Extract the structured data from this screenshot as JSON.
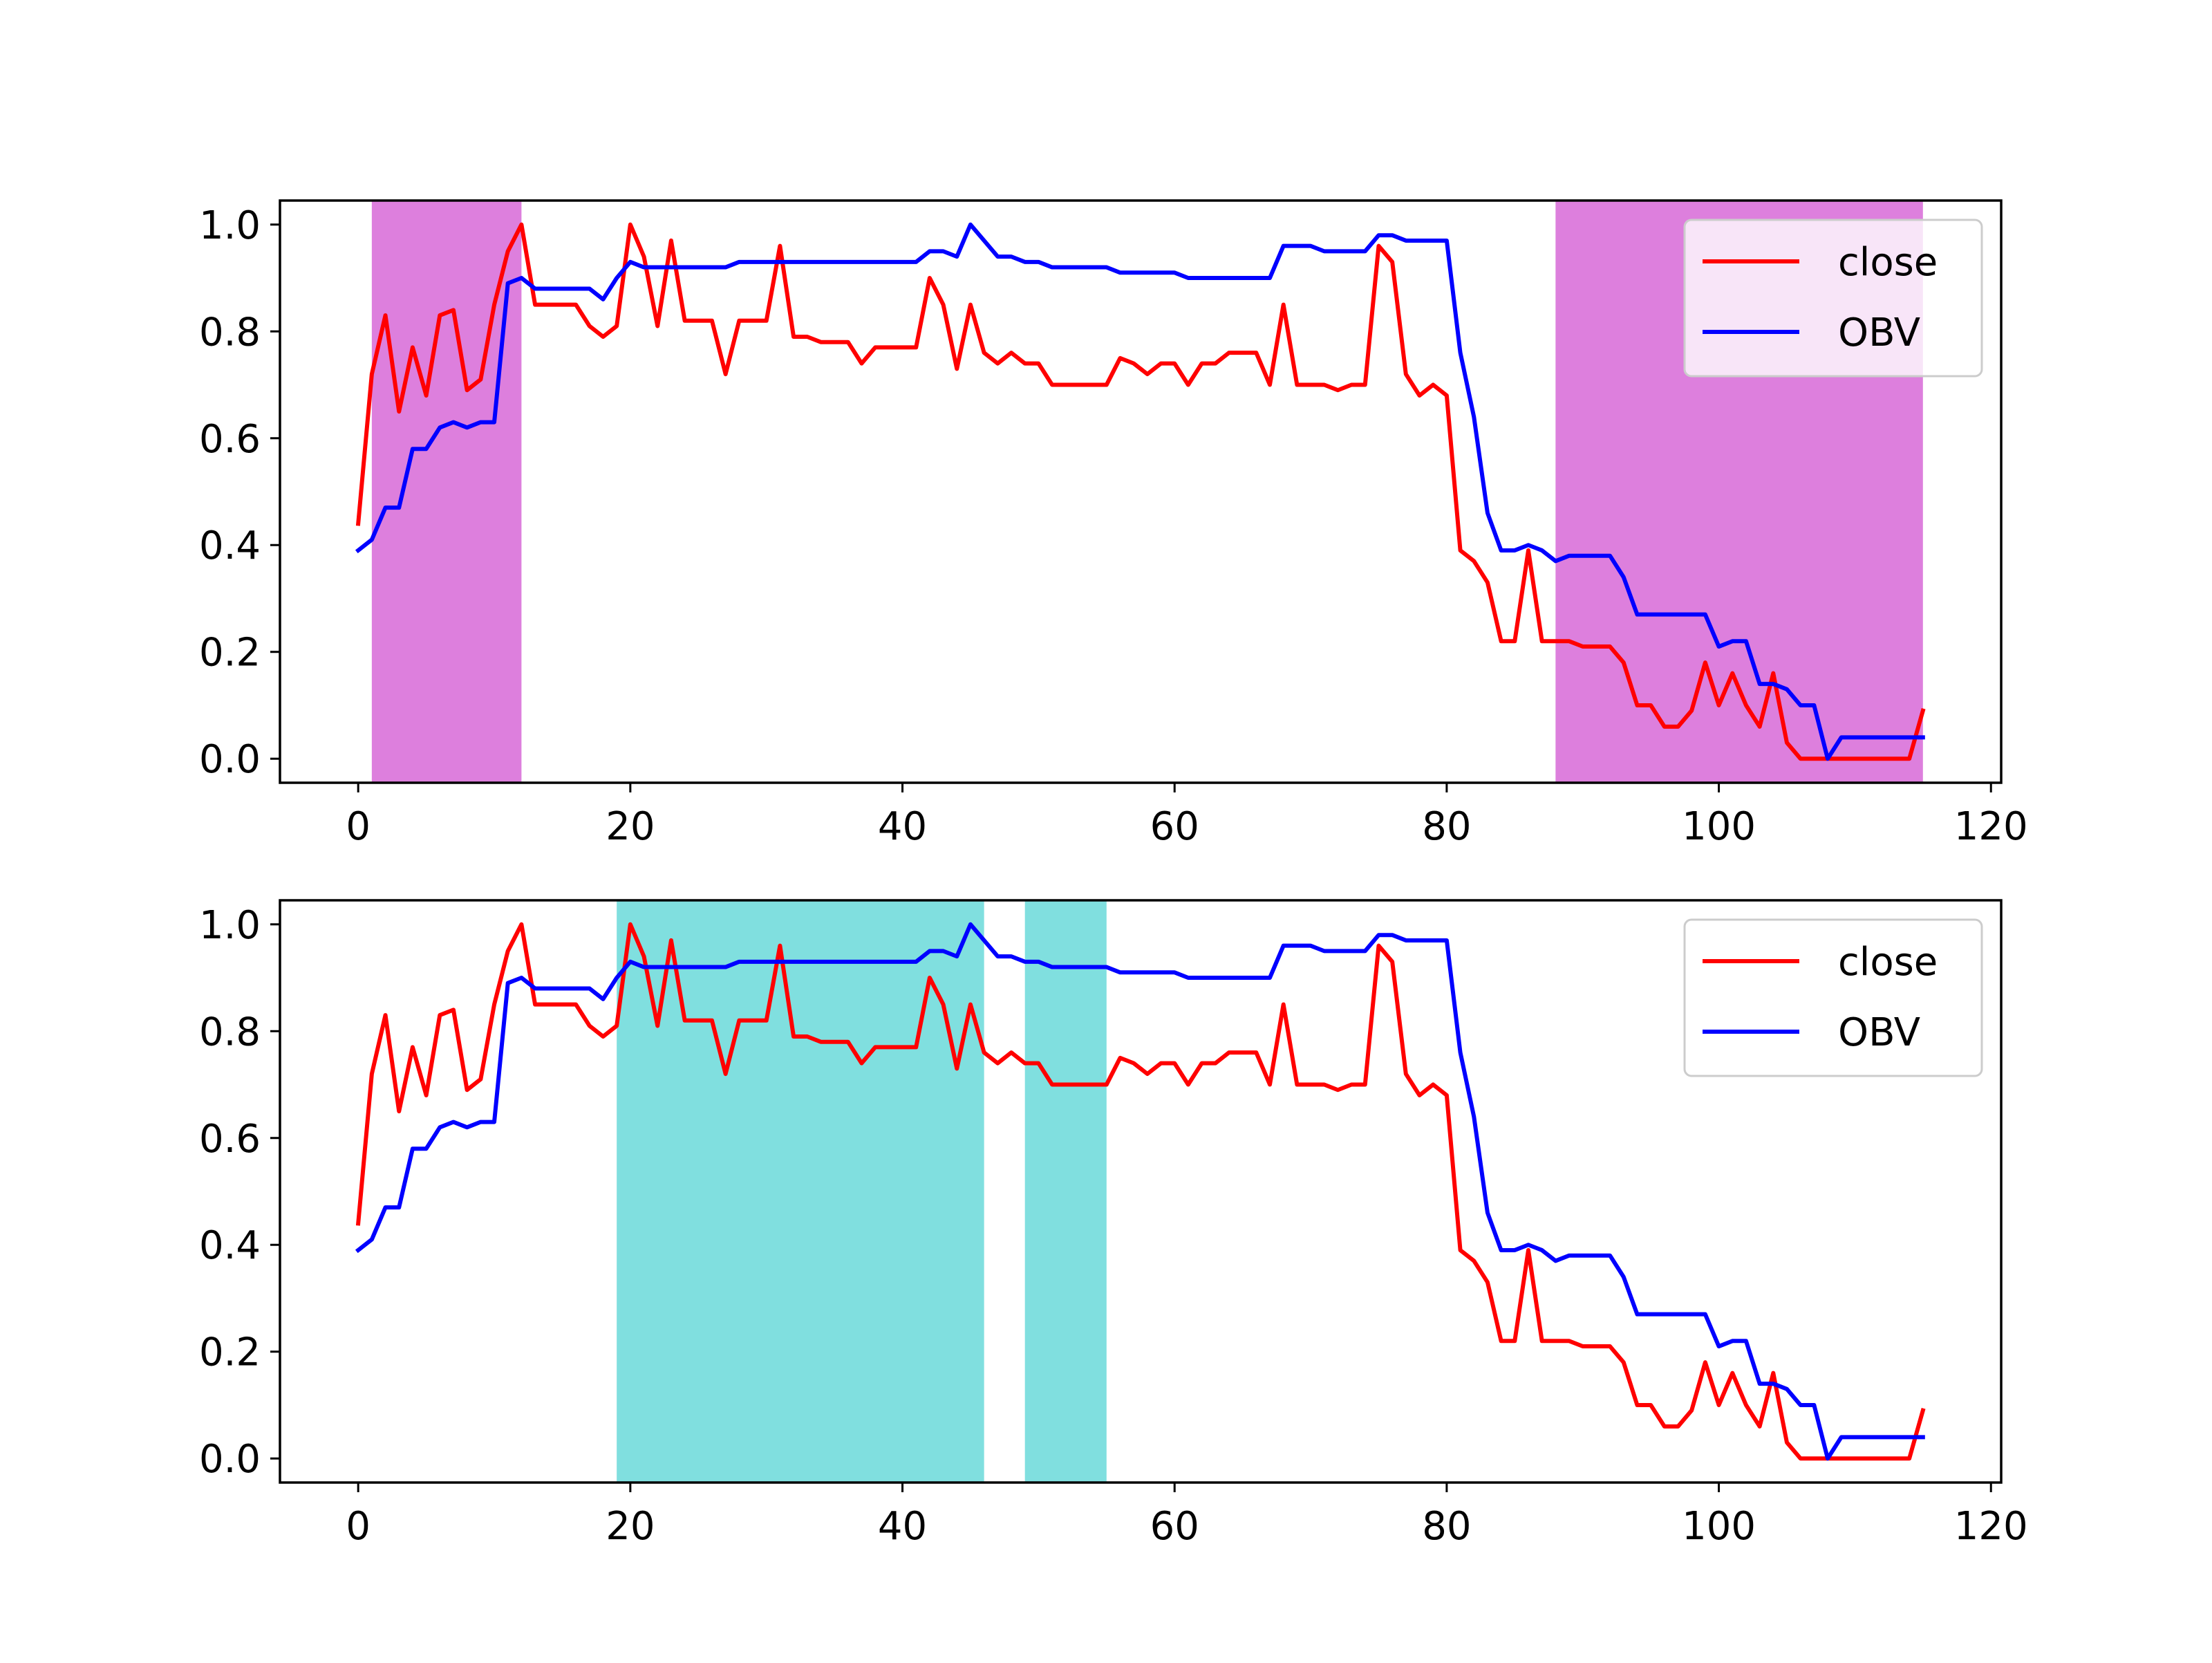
{
  "chart_data": [
    {
      "type": "line",
      "xlim": [
        -5.75,
        120.75
      ],
      "ylim": [
        -0.045,
        1.045
      ],
      "xticks": [
        0,
        20,
        40,
        60,
        80,
        100,
        120
      ],
      "yticks": [
        0.0,
        0.2,
        0.4,
        0.6,
        0.8,
        1.0
      ],
      "xtick_labels": [
        "0",
        "20",
        "40",
        "60",
        "80",
        "100",
        "120"
      ],
      "ytick_labels": [
        "0.0",
        "0.2",
        "0.4",
        "0.6",
        "0.8",
        "1.0"
      ],
      "legend_position": "upper-right",
      "legend": [
        "close",
        "OBV"
      ],
      "shaded_spans": [
        {
          "x0": 1,
          "x1": 12,
          "color": "#dd7fdd"
        },
        {
          "x0": 88,
          "x1": 115,
          "color": "#dd7fdd"
        }
      ],
      "series": [
        {
          "name": "close",
          "color": "#ff0000",
          "values": [
            0.44,
            0.72,
            0.83,
            0.65,
            0.77,
            0.68,
            0.83,
            0.84,
            0.69,
            0.71,
            0.85,
            0.95,
            1.0,
            0.85,
            0.85,
            0.85,
            0.85,
            0.81,
            0.79,
            0.81,
            1.0,
            0.94,
            0.81,
            0.97,
            0.82,
            0.82,
            0.82,
            0.72,
            0.82,
            0.82,
            0.82,
            0.96,
            0.79,
            0.79,
            0.78,
            0.78,
            0.78,
            0.74,
            0.77,
            0.77,
            0.77,
            0.77,
            0.9,
            0.85,
            0.73,
            0.85,
            0.76,
            0.74,
            0.76,
            0.74,
            0.74,
            0.7,
            0.7,
            0.7,
            0.7,
            0.7,
            0.75,
            0.74,
            0.72,
            0.74,
            0.74,
            0.7,
            0.74,
            0.74,
            0.76,
            0.76,
            0.76,
            0.7,
            0.85,
            0.7,
            0.7,
            0.7,
            0.69,
            0.7,
            0.7,
            0.96,
            0.93,
            0.72,
            0.68,
            0.7,
            0.68,
            0.39,
            0.37,
            0.33,
            0.22,
            0.22,
            0.39,
            0.22,
            0.22,
            0.22,
            0.21,
            0.21,
            0.21,
            0.18,
            0.1,
            0.1,
            0.06,
            0.06,
            0.09,
            0.18,
            0.1,
            0.16,
            0.1,
            0.06,
            0.16,
            0.03,
            0.0,
            0.0,
            0.0,
            0.0,
            0.0,
            0.0,
            0.0,
            0.0,
            0.0,
            0.09
          ]
        },
        {
          "name": "OBV",
          "color": "#0000ff",
          "values": [
            0.39,
            0.41,
            0.47,
            0.47,
            0.58,
            0.58,
            0.62,
            0.63,
            0.62,
            0.63,
            0.63,
            0.89,
            0.9,
            0.88,
            0.88,
            0.88,
            0.88,
            0.88,
            0.86,
            0.9,
            0.93,
            0.92,
            0.92,
            0.92,
            0.92,
            0.92,
            0.92,
            0.92,
            0.93,
            0.93,
            0.93,
            0.93,
            0.93,
            0.93,
            0.93,
            0.93,
            0.93,
            0.93,
            0.93,
            0.93,
            0.93,
            0.93,
            0.95,
            0.95,
            0.94,
            1.0,
            0.97,
            0.94,
            0.94,
            0.93,
            0.93,
            0.92,
            0.92,
            0.92,
            0.92,
            0.92,
            0.91,
            0.91,
            0.91,
            0.91,
            0.91,
            0.9,
            0.9,
            0.9,
            0.9,
            0.9,
            0.9,
            0.9,
            0.96,
            0.96,
            0.96,
            0.95,
            0.95,
            0.95,
            0.95,
            0.98,
            0.98,
            0.97,
            0.97,
            0.97,
            0.97,
            0.76,
            0.64,
            0.46,
            0.39,
            0.39,
            0.4,
            0.39,
            0.37,
            0.38,
            0.38,
            0.38,
            0.38,
            0.34,
            0.27,
            0.27,
            0.27,
            0.27,
            0.27,
            0.27,
            0.21,
            0.22,
            0.22,
            0.14,
            0.14,
            0.13,
            0.1,
            0.1,
            0.0,
            0.04,
            0.04,
            0.04,
            0.04,
            0.04,
            0.04,
            0.04
          ]
        }
      ]
    },
    {
      "type": "line",
      "xlim": [
        -5.75,
        120.75
      ],
      "ylim": [
        -0.045,
        1.045
      ],
      "xticks": [
        0,
        20,
        40,
        60,
        80,
        100,
        120
      ],
      "yticks": [
        0.0,
        0.2,
        0.4,
        0.6,
        0.8,
        1.0
      ],
      "xtick_labels": [
        "0",
        "20",
        "40",
        "60",
        "80",
        "100",
        "120"
      ],
      "ytick_labels": [
        "0.0",
        "0.2",
        "0.4",
        "0.6",
        "0.8",
        "1.0"
      ],
      "legend_position": "upper-right",
      "legend": [
        "close",
        "OBV"
      ],
      "shaded_spans": [
        {
          "x0": 19,
          "x1": 46,
          "color": "#80dfdf"
        },
        {
          "x0": 49,
          "x1": 55,
          "color": "#80dfdf"
        }
      ],
      "series": [
        {
          "name": "close",
          "color": "#ff0000",
          "values": [
            0.44,
            0.72,
            0.83,
            0.65,
            0.77,
            0.68,
            0.83,
            0.84,
            0.69,
            0.71,
            0.85,
            0.95,
            1.0,
            0.85,
            0.85,
            0.85,
            0.85,
            0.81,
            0.79,
            0.81,
            1.0,
            0.94,
            0.81,
            0.97,
            0.82,
            0.82,
            0.82,
            0.72,
            0.82,
            0.82,
            0.82,
            0.96,
            0.79,
            0.79,
            0.78,
            0.78,
            0.78,
            0.74,
            0.77,
            0.77,
            0.77,
            0.77,
            0.9,
            0.85,
            0.73,
            0.85,
            0.76,
            0.74,
            0.76,
            0.74,
            0.74,
            0.7,
            0.7,
            0.7,
            0.7,
            0.7,
            0.75,
            0.74,
            0.72,
            0.74,
            0.74,
            0.7,
            0.74,
            0.74,
            0.76,
            0.76,
            0.76,
            0.7,
            0.85,
            0.7,
            0.7,
            0.7,
            0.69,
            0.7,
            0.7,
            0.96,
            0.93,
            0.72,
            0.68,
            0.7,
            0.68,
            0.39,
            0.37,
            0.33,
            0.22,
            0.22,
            0.39,
            0.22,
            0.22,
            0.22,
            0.21,
            0.21,
            0.21,
            0.18,
            0.1,
            0.1,
            0.06,
            0.06,
            0.09,
            0.18,
            0.1,
            0.16,
            0.1,
            0.06,
            0.16,
            0.03,
            0.0,
            0.0,
            0.0,
            0.0,
            0.0,
            0.0,
            0.0,
            0.0,
            0.0,
            0.09
          ]
        },
        {
          "name": "OBV",
          "color": "#0000ff",
          "values": [
            0.39,
            0.41,
            0.47,
            0.47,
            0.58,
            0.58,
            0.62,
            0.63,
            0.62,
            0.63,
            0.63,
            0.89,
            0.9,
            0.88,
            0.88,
            0.88,
            0.88,
            0.88,
            0.86,
            0.9,
            0.93,
            0.92,
            0.92,
            0.92,
            0.92,
            0.92,
            0.92,
            0.92,
            0.93,
            0.93,
            0.93,
            0.93,
            0.93,
            0.93,
            0.93,
            0.93,
            0.93,
            0.93,
            0.93,
            0.93,
            0.93,
            0.93,
            0.95,
            0.95,
            0.94,
            1.0,
            0.97,
            0.94,
            0.94,
            0.93,
            0.93,
            0.92,
            0.92,
            0.92,
            0.92,
            0.92,
            0.91,
            0.91,
            0.91,
            0.91,
            0.91,
            0.9,
            0.9,
            0.9,
            0.9,
            0.9,
            0.9,
            0.9,
            0.96,
            0.96,
            0.96,
            0.95,
            0.95,
            0.95,
            0.95,
            0.98,
            0.98,
            0.97,
            0.97,
            0.97,
            0.97,
            0.76,
            0.64,
            0.46,
            0.39,
            0.39,
            0.4,
            0.39,
            0.37,
            0.38,
            0.38,
            0.38,
            0.38,
            0.34,
            0.27,
            0.27,
            0.27,
            0.27,
            0.27,
            0.27,
            0.21,
            0.22,
            0.22,
            0.14,
            0.14,
            0.13,
            0.1,
            0.1,
            0.0,
            0.04,
            0.04,
            0.04,
            0.04,
            0.04,
            0.04,
            0.04
          ]
        }
      ]
    }
  ]
}
